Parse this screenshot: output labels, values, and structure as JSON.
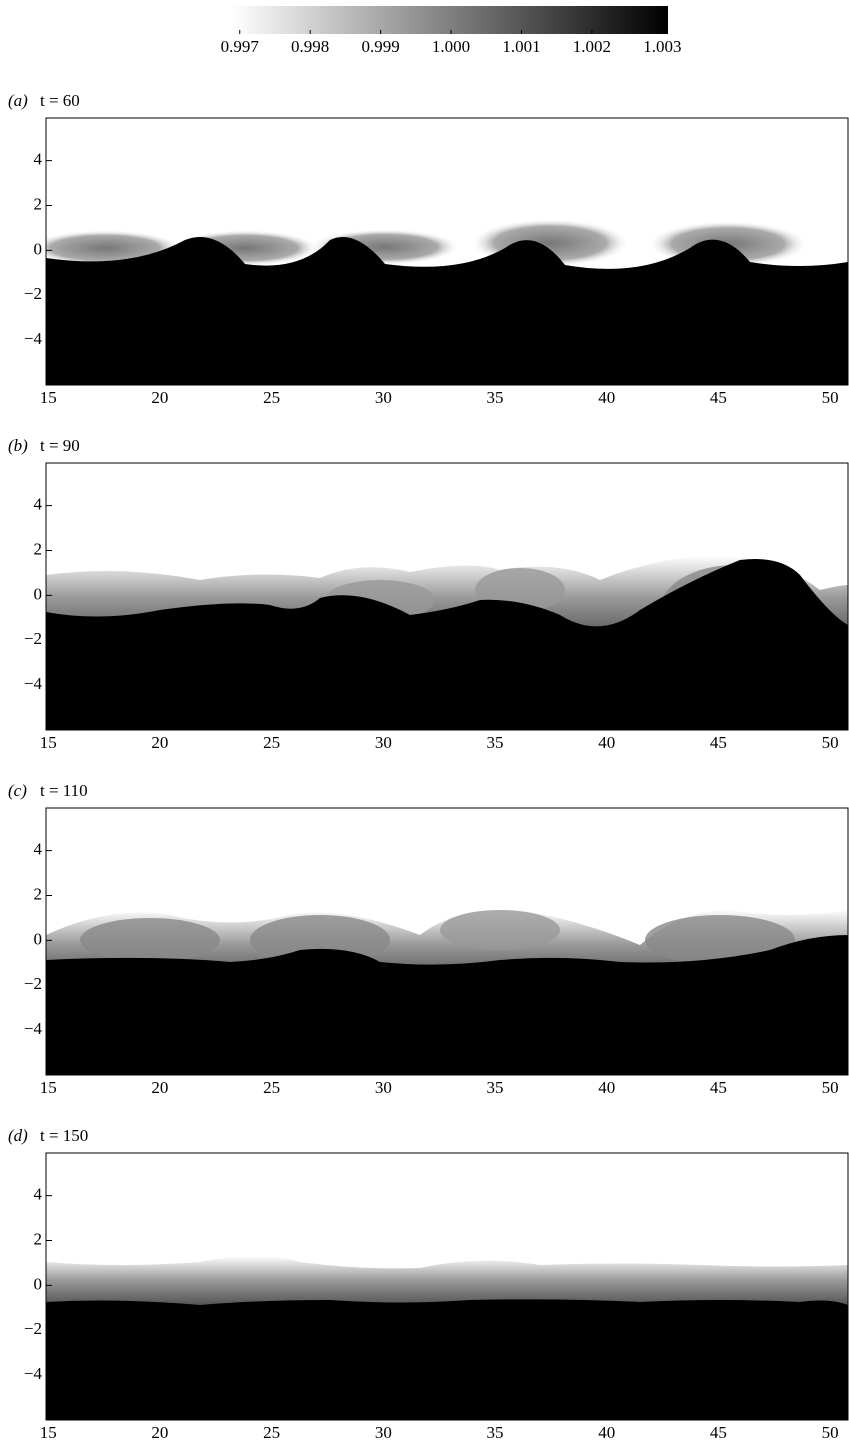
{
  "colorbar": {
    "clim": [
      0.99689,
      1.00308
    ],
    "colors": [
      "#ffffff",
      "#000000"
    ],
    "ticks": [
      0.997,
      0.998,
      0.999,
      {
        "value": 1,
        "label": "1.000"
      },
      1.001,
      1.002,
      1.003
    ]
  },
  "chart_data": [
    {
      "type": "heatmap",
      "label": "(a)",
      "title": "t = 60",
      "xlim": [
        14.9,
        50.8
      ],
      "ylim": [
        -6,
        5.9
      ],
      "xticks": [
        15,
        20,
        25,
        30,
        35,
        40,
        45,
        50
      ],
      "yticks": [
        {
          "value": -4,
          "label": "−4"
        },
        {
          "value": -2,
          "label": "−2"
        },
        0,
        2,
        4
      ]
    },
    {
      "type": "heatmap",
      "label": "(b)",
      "title": "t = 90",
      "xlim": [
        14.9,
        50.8
      ],
      "ylim": [
        -6,
        5.9
      ],
      "xticks": [
        15,
        20,
        25,
        30,
        35,
        40,
        45,
        50
      ],
      "yticks": [
        {
          "value": -4,
          "label": "−4"
        },
        {
          "value": -2,
          "label": "−2"
        },
        0,
        2,
        4
      ]
    },
    {
      "type": "heatmap",
      "label": "(c)",
      "title": "t = 110",
      "xlim": [
        14.9,
        50.8
      ],
      "ylim": [
        -6,
        5.9
      ],
      "xticks": [
        15,
        20,
        25,
        30,
        35,
        40,
        45,
        50
      ],
      "yticks": [
        {
          "value": -4,
          "label": "−4"
        },
        {
          "value": -2,
          "label": "−2"
        },
        0,
        2,
        4
      ]
    },
    {
      "type": "heatmap",
      "label": "(d)",
      "title": "t = 150",
      "xlim": [
        14.9,
        50.8
      ],
      "ylim": [
        -6,
        5.9
      ],
      "xticks": [
        15,
        20,
        25,
        30,
        35,
        40,
        45,
        50
      ],
      "yticks": [
        {
          "value": -4,
          "label": "−4"
        },
        {
          "value": -2,
          "label": "−2"
        },
        0,
        2,
        4
      ]
    }
  ]
}
